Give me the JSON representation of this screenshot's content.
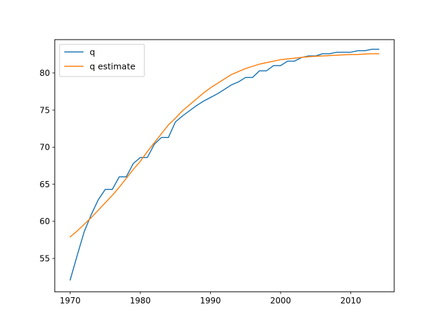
{
  "chart_data": {
    "type": "line",
    "title": "",
    "xlabel": "",
    "ylabel": "",
    "xlim": [
      1967.8,
      2016.2
    ],
    "ylim": [
      50.5,
      84.5
    ],
    "x_ticks": [
      1970,
      1980,
      1990,
      2000,
      2010
    ],
    "y_ticks": [
      55,
      60,
      65,
      70,
      75,
      80
    ],
    "grid": false,
    "legend_position": "upper-left",
    "x": [
      1970,
      1971,
      1972,
      1973,
      1974,
      1975,
      1976,
      1977,
      1978,
      1979,
      1980,
      1981,
      1982,
      1983,
      1984,
      1985,
      1986,
      1987,
      1988,
      1989,
      1990,
      1991,
      1992,
      1993,
      1994,
      1995,
      1996,
      1997,
      1998,
      1999,
      2000,
      2001,
      2002,
      2003,
      2004,
      2005,
      2006,
      2007,
      2008,
      2009,
      2010,
      2011,
      2012,
      2013,
      2014
    ],
    "series": [
      {
        "name": "q",
        "color": "#1f77b4",
        "values": [
          52.1,
          55.4,
          58.6,
          60.9,
          62.9,
          64.3,
          64.3,
          66.0,
          66.0,
          67.8,
          68.6,
          68.6,
          70.4,
          71.3,
          71.3,
          73.4,
          74.2,
          74.9,
          75.6,
          76.2,
          76.7,
          77.2,
          77.8,
          78.4,
          78.8,
          79.4,
          79.4,
          80.3,
          80.3,
          81.0,
          81.0,
          81.6,
          81.6,
          82.1,
          82.3,
          82.3,
          82.6,
          82.6,
          82.8,
          82.8,
          82.8,
          83.0,
          83.0,
          83.2,
          83.2
        ]
      },
      {
        "name": "q estimate",
        "color": "#ff7f0e",
        "values": [
          57.9,
          58.7,
          59.6,
          60.5,
          61.5,
          62.5,
          63.5,
          64.6,
          65.8,
          67.0,
          68.1,
          69.4,
          70.6,
          71.8,
          73.0,
          73.9,
          74.9,
          75.7,
          76.5,
          77.3,
          78.0,
          78.6,
          79.2,
          79.8,
          80.2,
          80.6,
          80.9,
          81.2,
          81.4,
          81.6,
          81.8,
          81.9,
          82.0,
          82.1,
          82.2,
          82.25,
          82.3,
          82.35,
          82.4,
          82.45,
          82.5,
          82.5,
          82.55,
          82.6,
          82.6
        ]
      }
    ]
  }
}
